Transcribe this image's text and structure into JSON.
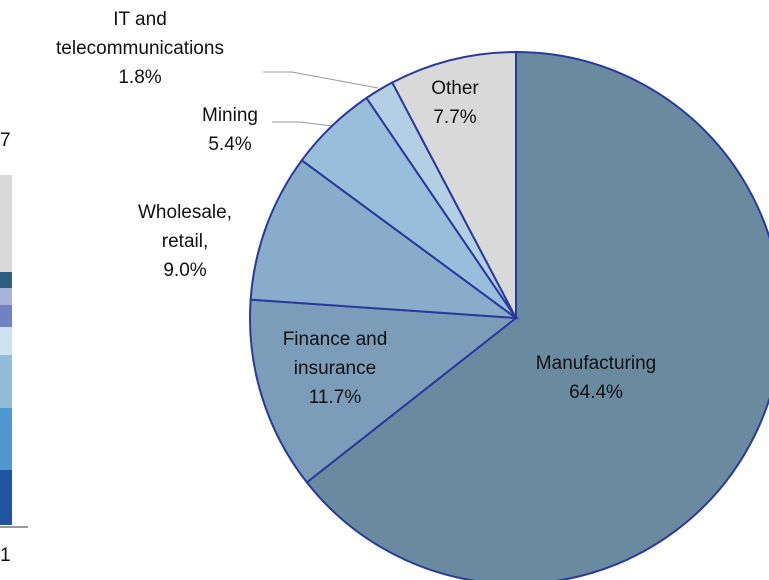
{
  "chart_data": {
    "type": "pie",
    "categories": [
      "Manufacturing",
      "Finance and insurance",
      "Wholesale, retail,",
      "Mining",
      "IT and telecommunications",
      "Other"
    ],
    "values": [
      64.4,
      11.7,
      9.0,
      5.4,
      1.8,
      7.7
    ],
    "value_labels": [
      "64.4%",
      "11.7%",
      "9.0%",
      "5.4%",
      "1.8%",
      "7.7%"
    ],
    "colors": [
      "#6a8aa0",
      "#7b9dba",
      "#88acc9",
      "#98bedc",
      "#b4cee4",
      "#d9d9d9"
    ]
  },
  "left_fragment_labels": [
    "7",
    "1"
  ]
}
